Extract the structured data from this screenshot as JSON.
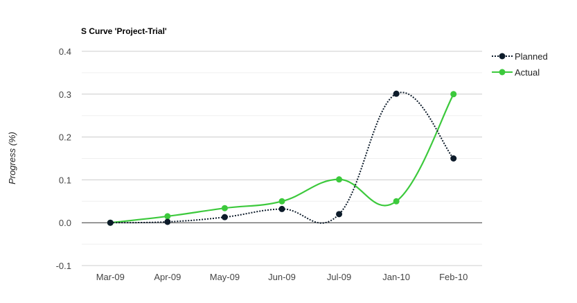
{
  "chart_data": {
    "type": "line",
    "title": "S Curve 'Project-Trial'",
    "xlabel": "",
    "ylabel": "Progress (%)",
    "categories": [
      "Mar-09",
      "Apr-09",
      "May-09",
      "Jun-09",
      "Jul-09",
      "Jan-10",
      "Feb-10"
    ],
    "ylim": [
      -0.1,
      0.4
    ],
    "yticks": [
      "-0.1",
      "0.0",
      "0.1",
      "0.2",
      "0.3",
      "0.4"
    ],
    "grid": true,
    "legend_position": "top-right",
    "series": [
      {
        "name": "Planned",
        "style": "dotted",
        "color": "#0d1b2a",
        "values": [
          0.0,
          0.002,
          0.013,
          0.032,
          0.02,
          0.301,
          0.15
        ]
      },
      {
        "name": "Actual",
        "style": "solid",
        "color": "#3cc93c",
        "values": [
          0.0,
          0.015,
          0.034,
          0.05,
          0.101,
          0.05,
          0.3
        ]
      }
    ]
  }
}
